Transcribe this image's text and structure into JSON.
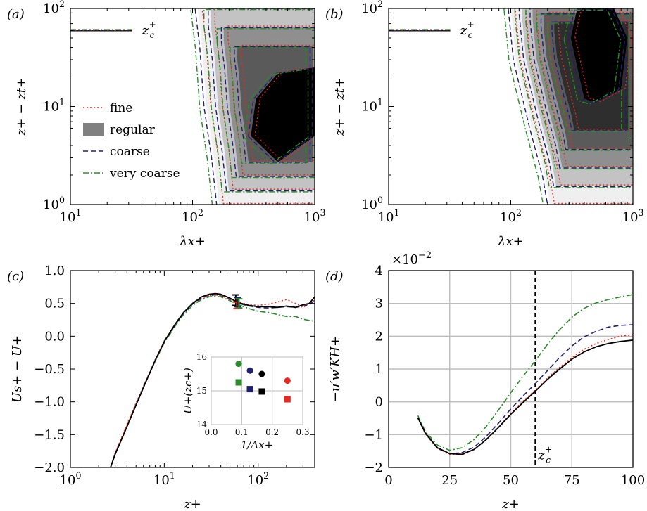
{
  "figure": {
    "palette": {
      "fine": "#e8281e",
      "regular": "#808080",
      "coarse": "#1f1f6e",
      "very_coarse": "#2b8a2b",
      "black": "#000000",
      "grid": "#bdbdbd"
    }
  },
  "chart_data": [
    {
      "panel": "(a)",
      "type": "area",
      "xlabel": "λx+",
      "ylabel": "z+ − zt+",
      "xscale": "log",
      "yscale": "log",
      "xlim": [
        10,
        1000
      ],
      "ylim": [
        1,
        100
      ],
      "xticks": [
        "10^1",
        "10^2",
        "10^3"
      ],
      "yticks": [
        "10^0",
        "10^1",
        "10^2"
      ],
      "annotation": "zc+",
      "zc_line_y": 60,
      "legend": {
        "placement": "center-left",
        "entries": [
          "fine",
          "regular",
          "coarse",
          "very coarse"
        ]
      },
      "contour_levels_shaded": 4,
      "outer_contour_left_edge": [
        [
          110,
          100
        ],
        [
          120,
          40
        ],
        [
          130,
          10
        ],
        [
          150,
          3
        ],
        [
          165,
          1
        ]
      ],
      "inner_core_region": [
        [
          300,
          5
        ],
        [
          500,
          2.7
        ],
        [
          1000,
          5
        ],
        [
          1000,
          25
        ],
        [
          500,
          22
        ],
        [
          330,
          12
        ]
      ]
    },
    {
      "panel": "(b)",
      "type": "area",
      "xlabel": "λx+",
      "ylabel": "z+ − zt+",
      "xscale": "log",
      "yscale": "log",
      "xlim": [
        10,
        1000
      ],
      "ylim": [
        1,
        100
      ],
      "xticks": [
        "10^1",
        "10^2",
        "10^3"
      ],
      "yticks": [
        "10^0",
        "10^1",
        "10^2"
      ],
      "annotation": "zc+",
      "zc_line_y": 60,
      "contour_levels_shaded": 5,
      "outer_contour_left_edge": [
        [
          100,
          100
        ],
        [
          110,
          30
        ],
        [
          150,
          6
        ],
        [
          190,
          2
        ],
        [
          210,
          1
        ]
      ],
      "inner_core_region": [
        [
          310,
          50
        ],
        [
          400,
          12
        ],
        [
          500,
          11
        ],
        [
          800,
          15
        ],
        [
          900,
          50
        ],
        [
          700,
          100
        ],
        [
          350,
          100
        ]
      ]
    },
    {
      "panel": "(c)",
      "type": "line",
      "xlabel": "z+",
      "ylabel": "Us+ − U+",
      "xscale": "log",
      "xlim": [
        1,
        400
      ],
      "ylim": [
        -2.0,
        1.0
      ],
      "xticks": [
        "10^0",
        "10^1",
        "10^2"
      ],
      "yticks": [
        "−2.0",
        "−1.5",
        "−1.0",
        "−0.5",
        "0.0",
        "0.5",
        "1.0"
      ],
      "x": [
        2.6,
        3,
        4,
        5,
        6,
        8,
        10,
        13,
        16,
        20,
        25,
        30,
        35,
        40,
        50,
        60,
        70,
        80,
        100,
        130,
        160,
        200,
        250,
        300,
        350,
        400
      ],
      "series": [
        {
          "name": "regular",
          "values": [
            -2.05,
            -1.8,
            -1.38,
            -1.05,
            -0.78,
            -0.37,
            -0.08,
            0.18,
            0.36,
            0.5,
            0.6,
            0.64,
            0.65,
            0.64,
            0.58,
            0.52,
            0.49,
            0.47,
            0.45,
            0.45,
            0.44,
            0.46,
            0.44,
            0.48,
            0.5,
            0.6
          ]
        },
        {
          "name": "fine",
          "values": [
            -2.05,
            -1.78,
            -1.35,
            -1.02,
            -0.76,
            -0.36,
            -0.07,
            0.18,
            0.36,
            0.5,
            0.59,
            0.62,
            0.63,
            0.62,
            0.56,
            0.52,
            0.5,
            0.48,
            0.47,
            0.49,
            0.52,
            0.56,
            0.5,
            0.44,
            0.5,
            0.55
          ]
        },
        {
          "name": "coarse",
          "values": [
            -2.05,
            -1.79,
            -1.37,
            -1.04,
            -0.77,
            -0.37,
            -0.08,
            0.17,
            0.35,
            0.49,
            0.58,
            0.62,
            0.63,
            0.62,
            0.56,
            0.51,
            0.48,
            0.46,
            0.44,
            0.43,
            0.44,
            0.45,
            0.44,
            0.46,
            0.48,
            0.55
          ]
        },
        {
          "name": "very coarse",
          "values": [
            -2.05,
            -1.8,
            -1.38,
            -1.05,
            -0.78,
            -0.38,
            -0.1,
            0.15,
            0.33,
            0.47,
            0.56,
            0.6,
            0.61,
            0.6,
            0.54,
            0.49,
            0.45,
            0.42,
            0.38,
            0.36,
            0.33,
            0.3,
            0.3,
            0.26,
            0.24,
            0.23
          ]
        }
      ],
      "errorbars_at_zc": [
        {
          "name": "regular",
          "x": 60,
          "y": 0.55,
          "err": 0.08
        },
        {
          "name": "fine",
          "x": 60,
          "y": 0.47,
          "err": 0.05
        },
        {
          "name": "coarse",
          "x": 60,
          "y": 0.52,
          "err": 0.07
        },
        {
          "name": "very coarse",
          "x": 60,
          "y": 0.5,
          "err": 0.07
        }
      ],
      "inset": {
        "type": "scatter",
        "xlabel": "1/Δx+",
        "ylabel": "U+(zc+)",
        "xlim": [
          0,
          0.3
        ],
        "ylim": [
          14,
          16
        ],
        "xticks": [
          "0.0",
          "0.1",
          "0.2",
          "0.3"
        ],
        "yticks": [
          "14",
          "15",
          "16"
        ],
        "points": [
          {
            "series": "very coarse",
            "marker": "circle",
            "x": 0.09,
            "y": 15.8
          },
          {
            "series": "very coarse",
            "marker": "square",
            "x": 0.09,
            "y": 15.25
          },
          {
            "series": "coarse",
            "marker": "circle",
            "x": 0.127,
            "y": 15.6
          },
          {
            "series": "coarse",
            "marker": "square",
            "x": 0.127,
            "y": 15.05
          },
          {
            "series": "regular",
            "marker": "circle",
            "x": 0.166,
            "y": 15.5
          },
          {
            "series": "regular",
            "marker": "square",
            "x": 0.166,
            "y": 14.98
          },
          {
            "series": "fine",
            "marker": "circle",
            "x": 0.25,
            "y": 15.3
          },
          {
            "series": "fine",
            "marker": "square",
            "x": 0.25,
            "y": 14.75
          }
        ]
      }
    },
    {
      "panel": "(d)",
      "type": "line",
      "xlabel": "z+",
      "ylabel": "−u′w′KH+",
      "scale_note": "×10−2",
      "xlim": [
        0,
        100
      ],
      "ylim": [
        -2,
        4
      ],
      "xticks": [
        "0",
        "25",
        "50",
        "75",
        "100"
      ],
      "yticks": [
        "−2",
        "−1",
        "0",
        "1",
        "2",
        "3",
        "4"
      ],
      "grid": true,
      "vline": {
        "x": 60,
        "label": "zc+"
      },
      "x": [
        12,
        15,
        20,
        25,
        30,
        35,
        40,
        45,
        50,
        55,
        60,
        65,
        70,
        75,
        80,
        85,
        90,
        95,
        100
      ],
      "series": [
        {
          "name": "regular",
          "values": [
            -0.48,
            -0.95,
            -1.4,
            -1.58,
            -1.6,
            -1.45,
            -1.15,
            -0.78,
            -0.38,
            -0.02,
            0.32,
            0.68,
            1.0,
            1.3,
            1.52,
            1.68,
            1.78,
            1.84,
            1.88
          ]
        },
        {
          "name": "fine",
          "values": [
            -0.5,
            -0.97,
            -1.42,
            -1.6,
            -1.62,
            -1.45,
            -1.15,
            -0.78,
            -0.35,
            0.02,
            0.35,
            0.72,
            1.05,
            1.35,
            1.6,
            1.78,
            1.9,
            2.0,
            2.05
          ]
        },
        {
          "name": "coarse",
          "values": [
            -0.48,
            -0.96,
            -1.42,
            -1.58,
            -1.55,
            -1.38,
            -1.05,
            -0.65,
            -0.22,
            0.18,
            0.55,
            0.95,
            1.35,
            1.7,
            1.98,
            2.15,
            2.28,
            2.33,
            2.35
          ]
        },
        {
          "name": "very coarse",
          "values": [
            -0.42,
            -0.9,
            -1.32,
            -1.48,
            -1.4,
            -1.15,
            -0.75,
            -0.25,
            0.28,
            0.78,
            1.25,
            1.75,
            2.2,
            2.58,
            2.85,
            3.02,
            3.12,
            3.2,
            3.27
          ]
        }
      ]
    }
  ]
}
